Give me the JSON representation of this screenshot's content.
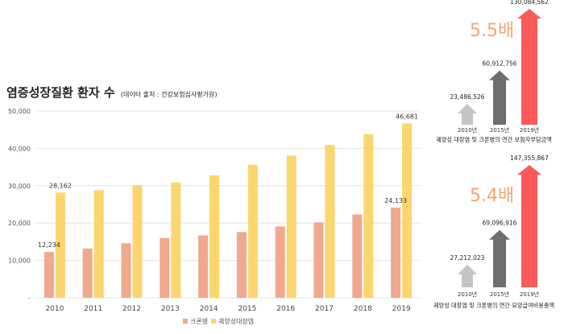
{
  "title": "염증성장질환 환자 수",
  "source": "(데이터 출처 : 건강보험심사평가원)",
  "colors": {
    "crohn": "#f0a88e",
    "uc": "#fbd56e",
    "up_gray": "#c4c4c4",
    "up_dark": "#6e6e6e",
    "up_red": "#fb5a5a",
    "ratio": "#f5a56e"
  },
  "chart_data": [
    {
      "type": "bar",
      "title": "염증성장질환 환자 수",
      "categories": [
        "2010",
        "2011",
        "2012",
        "2013",
        "2014",
        "2015",
        "2016",
        "2017",
        "2018",
        "2019"
      ],
      "series": [
        {
          "name": "크론병",
          "values": [
            12234,
            13200,
            14600,
            16000,
            16700,
            17600,
            19100,
            20200,
            22300,
            24133
          ]
        },
        {
          "name": "궤양성대장염",
          "values": [
            28162,
            28800,
            30100,
            30900,
            32800,
            35600,
            38100,
            40900,
            43800,
            46681
          ]
        }
      ],
      "data_labels": {
        "crohn_2010": "12,234",
        "crohn_2019": "24,133",
        "uc_2010": "28,162",
        "uc_2019": "46,681"
      },
      "ylim": [
        0,
        50000
      ],
      "yticks": [
        "-",
        "10,000",
        "20,000",
        "30,000",
        "40,000",
        "50,000"
      ],
      "legend": [
        "크론병",
        "궤양성대장염"
      ],
      "legend_position": "bottom-center"
    },
    {
      "type": "bar",
      "title": "궤양성 대장염 및 크론병의 연간 보험자부담금액",
      "categories": [
        "2010년",
        "2015년",
        "2019년"
      ],
      "values": [
        23486526,
        60912756,
        130084562
      ],
      "value_labels": [
        "23,486,526",
        "60,912,756",
        "130,084,562"
      ],
      "ratio": "5.5배"
    },
    {
      "type": "bar",
      "title": "궤양성 대장염 및 크론병의 연간 요양급여비용총액",
      "categories": [
        "2010년",
        "2015년",
        "2019년"
      ],
      "values": [
        27212023,
        69096916,
        147355867
      ],
      "value_labels": [
        "27,212,023",
        "69,096,916",
        "147,355,867"
      ],
      "ratio": "5.4배"
    }
  ]
}
